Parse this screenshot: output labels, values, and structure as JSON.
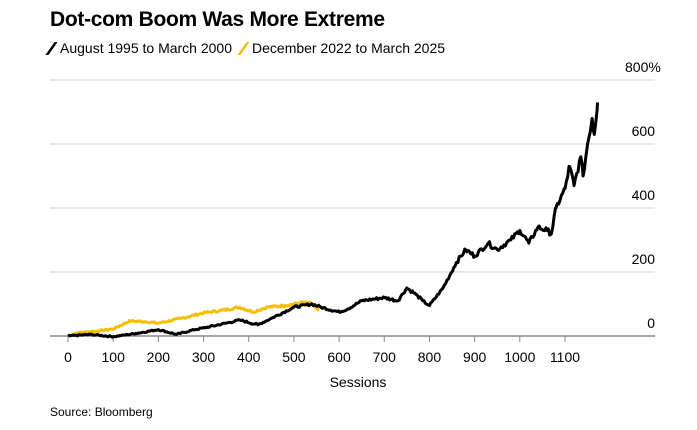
{
  "chart_data": {
    "type": "line",
    "title": "Dot-com Boom Was More Extreme",
    "xlabel": "Sessions",
    "ylabel": "",
    "xlim": [
      0,
      1200
    ],
    "ylim": [
      0,
      800
    ],
    "x_ticks": [
      "0",
      "100",
      "200",
      "300",
      "400",
      "500",
      "600",
      "700",
      "800",
      "900",
      "1000",
      "1100"
    ],
    "y_ticks": [
      "0",
      "200",
      "400",
      "600",
      "800%"
    ],
    "grid": true,
    "legend_position": "top-left",
    "series": [
      {
        "name": "August 1995 to March 2000",
        "color": "#000000",
        "x": [
          0,
          50,
          100,
          150,
          200,
          240,
          280,
          300,
          350,
          380,
          420,
          450,
          500,
          540,
          560,
          600,
          620,
          650,
          700,
          730,
          750,
          770,
          785,
          800,
          830,
          860,
          880,
          900,
          930,
          950,
          980,
          1000,
          1020,
          1040,
          1060,
          1070,
          1080,
          1100,
          1110,
          1120,
          1135,
          1140,
          1150,
          1160,
          1165,
          1172
        ],
        "y": [
          0,
          5,
          -2,
          8,
          20,
          5,
          20,
          25,
          40,
          50,
          35,
          55,
          90,
          100,
          90,
          75,
          85,
          110,
          120,
          110,
          150,
          130,
          110,
          95,
          150,
          230,
          270,
          250,
          290,
          270,
          300,
          330,
          290,
          340,
          330,
          320,
          400,
          460,
          530,
          470,
          560,
          500,
          600,
          680,
          630,
          730
        ]
      },
      {
        "name": "December 2022 to March 2025",
        "color": "#F5BE00",
        "x": [
          0,
          20,
          60,
          100,
          137,
          170,
          200,
          250,
          300,
          340,
          380,
          410,
          440,
          480,
          520,
          540,
          555
        ],
        "y": [
          0,
          10,
          15,
          22,
          47,
          45,
          40,
          55,
          72,
          80,
          90,
          75,
          90,
          95,
          105,
          100,
          78
        ]
      }
    ],
    "source": "Source: Bloomberg"
  }
}
